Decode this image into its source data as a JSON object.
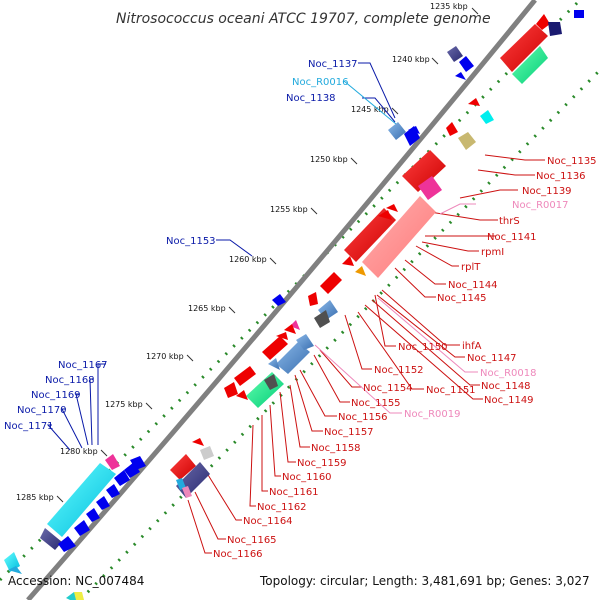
{
  "title": "Nitrosococcus oceani ATCC 19707, complete genome",
  "footer": {
    "accession": "Accession: NC_007484",
    "topology": "Topology: circular; Length: 3,481,691 bp; Genes: 3,027"
  },
  "colors": {
    "forward_strand_labels": "#0a1aa8",
    "reverse_strand_labels": "#cc1111",
    "rna_forward": "#22aadd",
    "rna_reverse": "#ee88bb",
    "backbone": "#808080",
    "tick_dots": "#2a8a2a"
  },
  "kbp_ticks": [
    "1235 kbp",
    "1240 kbp",
    "1245 kbp",
    "1250 kbp",
    "1255 kbp",
    "1260 kbp",
    "1265 kbp",
    "1270 kbp",
    "1275 kbp",
    "1280 kbp",
    "1285 kbp"
  ],
  "labels_forward": [
    "Noc_1137",
    "Noc_R0016",
    "Noc_1138",
    "Noc_1153",
    "Noc_1167",
    "Noc_1168",
    "Noc_1169",
    "Noc_1170",
    "Noc_1171"
  ],
  "labels_reverse": [
    "Noc_1135",
    "Noc_1136",
    "Noc_1139",
    "Noc_R0017",
    "thrS",
    "Noc_1141",
    "rpmI",
    "rplT",
    "Noc_1144",
    "Noc_1145",
    "ihfA",
    "Noc_1147",
    "Noc_R0018",
    "Noc_1148",
    "Noc_1149",
    "Noc_1150",
    "Noc_1151",
    "Noc_1152",
    "Noc_1154",
    "Noc_1155",
    "Noc_R0019",
    "Noc_1156",
    "Noc_1157",
    "Noc_1158",
    "Noc_1159",
    "Noc_1160",
    "Noc_1161",
    "Noc_1162",
    "Noc_1164",
    "Noc_1165",
    "Noc_1166"
  ]
}
